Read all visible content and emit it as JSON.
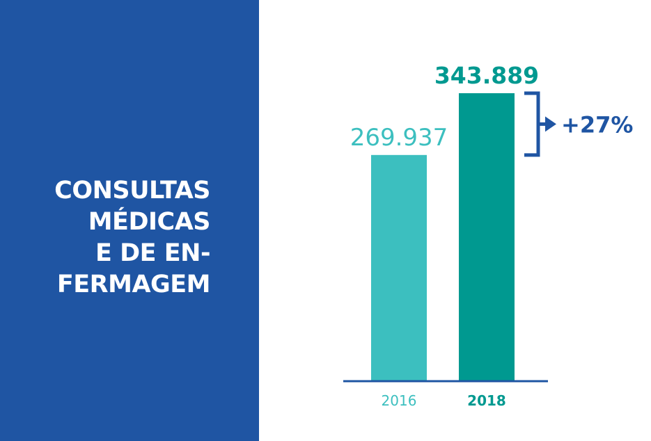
{
  "panel": {
    "title_lines": [
      "CONSULTAS",
      "MÉDICAS",
      "E DE EN-",
      "FERMAGEM"
    ],
    "background_color": "#1f55a3",
    "text_color": "#ffffff"
  },
  "chart_data": {
    "type": "bar",
    "categories": [
      "2016",
      "2018"
    ],
    "values": [
      269937,
      343889
    ],
    "value_labels": [
      "269.937",
      "343.889"
    ],
    "bar_colors": [
      "#3cbfbf",
      "#009990"
    ],
    "ylim": [
      0,
      343889
    ],
    "grid": false,
    "legend": "none",
    "axis_color": "#1f55a3",
    "annotation": {
      "text": "+27%",
      "color": "#1f55a3",
      "from_category": "2016",
      "to_category": "2018"
    }
  }
}
